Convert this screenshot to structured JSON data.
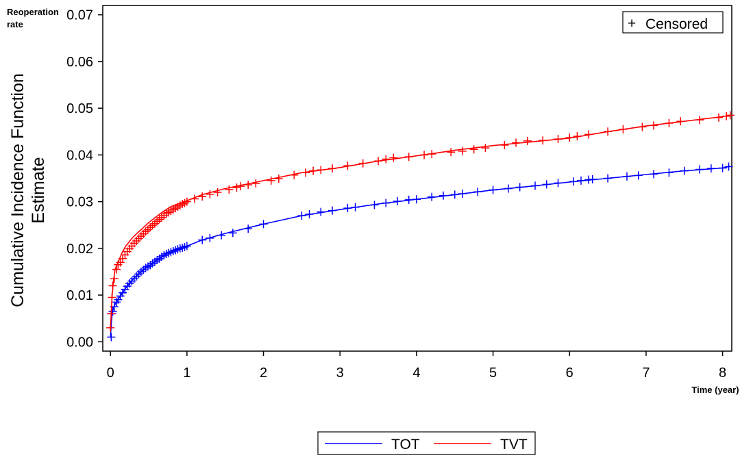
{
  "chart_data": {
    "type": "line",
    "title": "",
    "corner_label_line1": "Reoperation",
    "corner_label_line2": "rate",
    "ylabel_line1": "Cumulative Incidence Function",
    "ylabel_line2": "Estimate",
    "xlabel": "Time (year)",
    "xlim": [
      -0.1,
      8.12
    ],
    "ylim": [
      -0.002,
      0.072
    ],
    "x_ticks": [
      0,
      1,
      2,
      3,
      4,
      5,
      6,
      7,
      8
    ],
    "x_tick_labels": [
      "0",
      "1",
      "2",
      "3",
      "4",
      "5",
      "6",
      "7",
      "8"
    ],
    "y_ticks": [
      0.0,
      0.01,
      0.02,
      0.03,
      0.04,
      0.05,
      0.06,
      0.07
    ],
    "y_tick_labels": [
      "0.00",
      "0.01",
      "0.02",
      "0.03",
      "0.04",
      "0.05",
      "0.06",
      "0.07"
    ],
    "grid": false,
    "censor_legend": {
      "symbol": "+",
      "label": "Censored",
      "placement": "top-right"
    },
    "legend_placement": "bottom",
    "series": [
      {
        "name": "TOT",
        "color": "#0000ff",
        "x": [
          0,
          0.02,
          0.04,
          0.06,
          0.1,
          0.15,
          0.2,
          0.3,
          0.4,
          0.5,
          0.6,
          0.7,
          0.8,
          0.9,
          1.0,
          1.2,
          1.5,
          2.0,
          2.5,
          3.0,
          3.5,
          4.0,
          4.5,
          5.0,
          5.5,
          6.0,
          6.5,
          7.0,
          7.5,
          8.0,
          8.1
        ],
        "y": [
          0.001,
          0.006,
          0.0072,
          0.008,
          0.009,
          0.0103,
          0.0115,
          0.0135,
          0.015,
          0.0162,
          0.0174,
          0.0185,
          0.0193,
          0.0199,
          0.0205,
          0.0218,
          0.0232,
          0.0252,
          0.027,
          0.0283,
          0.0295,
          0.0305,
          0.0315,
          0.0325,
          0.0333,
          0.0342,
          0.035,
          0.0358,
          0.0366,
          0.0372,
          0.0376
        ],
        "censored_x": [
          0.01,
          0.02,
          0.03,
          0.05,
          0.08,
          0.1,
          0.13,
          0.16,
          0.19,
          0.22,
          0.25,
          0.28,
          0.31,
          0.34,
          0.37,
          0.4,
          0.43,
          0.46,
          0.49,
          0.52,
          0.55,
          0.58,
          0.61,
          0.64,
          0.67,
          0.7,
          0.73,
          0.76,
          0.79,
          0.82,
          0.85,
          0.88,
          0.91,
          0.94,
          0.97,
          1.0,
          1.2,
          1.3,
          1.45,
          1.6,
          1.8,
          2.0,
          2.5,
          2.6,
          2.75,
          2.9,
          3.1,
          3.2,
          3.45,
          3.6,
          3.75,
          3.9,
          4.0,
          4.2,
          4.35,
          4.5,
          4.6,
          4.8,
          5.0,
          5.2,
          5.35,
          5.55,
          5.7,
          5.85,
          6.05,
          6.15,
          6.25,
          6.3,
          6.5,
          6.75,
          6.9,
          7.1,
          7.3,
          7.5,
          7.7,
          7.85,
          8.0,
          8.08
        ],
        "censored_y": [
          0.001,
          0.006,
          0.0065,
          0.0075,
          0.0085,
          0.009,
          0.0098,
          0.0105,
          0.0112,
          0.0119,
          0.0125,
          0.013,
          0.0135,
          0.014,
          0.0145,
          0.015,
          0.0154,
          0.0158,
          0.0161,
          0.0164,
          0.0168,
          0.0171,
          0.0175,
          0.0178,
          0.0182,
          0.0185,
          0.0188,
          0.019,
          0.0192,
          0.0194,
          0.0196,
          0.0198,
          0.02,
          0.0201,
          0.0203,
          0.0205,
          0.0218,
          0.0222,
          0.0228,
          0.0233,
          0.0242,
          0.0252,
          0.027,
          0.0273,
          0.0278,
          0.0281,
          0.0286,
          0.0288,
          0.0293,
          0.0297,
          0.0301,
          0.0304,
          0.0305,
          0.031,
          0.0313,
          0.0315,
          0.0317,
          0.0321,
          0.0325,
          0.0328,
          0.0331,
          0.0334,
          0.0337,
          0.034,
          0.0343,
          0.0345,
          0.0347,
          0.0348,
          0.035,
          0.0354,
          0.0356,
          0.0359,
          0.0362,
          0.0366,
          0.0369,
          0.0371,
          0.0372,
          0.0375
        ]
      },
      {
        "name": "TVT",
        "color": "#ff0000",
        "x": [
          0,
          0.01,
          0.02,
          0.04,
          0.06,
          0.1,
          0.15,
          0.2,
          0.3,
          0.4,
          0.5,
          0.6,
          0.7,
          0.8,
          0.9,
          1.0,
          1.2,
          1.5,
          2.0,
          2.5,
          3.0,
          3.5,
          4.0,
          4.5,
          5.0,
          5.5,
          6.0,
          6.5,
          7.0,
          7.5,
          8.0,
          8.1
        ],
        "y": [
          0.003,
          0.006,
          0.0095,
          0.013,
          0.0155,
          0.017,
          0.019,
          0.0205,
          0.0225,
          0.024,
          0.0255,
          0.0268,
          0.028,
          0.029,
          0.0296,
          0.0302,
          0.0315,
          0.0328,
          0.0345,
          0.0362,
          0.0373,
          0.0387,
          0.0398,
          0.041,
          0.042,
          0.0428,
          0.0436,
          0.045,
          0.0462,
          0.0472,
          0.0482,
          0.0485
        ],
        "censored_x": [
          0.0,
          0.01,
          0.02,
          0.03,
          0.05,
          0.08,
          0.1,
          0.13,
          0.16,
          0.19,
          0.22,
          0.25,
          0.28,
          0.31,
          0.34,
          0.37,
          0.4,
          0.43,
          0.46,
          0.49,
          0.52,
          0.55,
          0.58,
          0.61,
          0.64,
          0.67,
          0.7,
          0.73,
          0.76,
          0.79,
          0.82,
          0.85,
          0.88,
          0.91,
          0.94,
          0.97,
          1.0,
          1.1,
          1.2,
          1.3,
          1.4,
          1.55,
          1.65,
          1.7,
          1.8,
          1.9,
          2.1,
          2.2,
          2.4,
          2.55,
          2.65,
          2.75,
          2.9,
          3.1,
          3.3,
          3.5,
          3.6,
          3.7,
          3.9,
          4.1,
          4.2,
          4.45,
          4.6,
          4.75,
          4.9,
          5.15,
          5.3,
          5.45,
          5.65,
          5.85,
          6.0,
          6.1,
          6.25,
          6.5,
          6.7,
          6.95,
          7.1,
          7.3,
          7.45,
          7.7,
          7.95,
          8.05,
          8.1
        ],
        "censored_y": [
          0.003,
          0.006,
          0.0095,
          0.012,
          0.0135,
          0.0155,
          0.0165,
          0.017,
          0.0178,
          0.0186,
          0.0193,
          0.0199,
          0.0205,
          0.0211,
          0.0216,
          0.0221,
          0.0226,
          0.0231,
          0.0236,
          0.024,
          0.0245,
          0.0249,
          0.0253,
          0.0258,
          0.0262,
          0.0266,
          0.027,
          0.0274,
          0.0277,
          0.028,
          0.0283,
          0.0286,
          0.0289,
          0.0292,
          0.0295,
          0.0297,
          0.03,
          0.0306,
          0.0311,
          0.0316,
          0.032,
          0.0326,
          0.033,
          0.0333,
          0.0336,
          0.0339,
          0.0345,
          0.0349,
          0.0357,
          0.0362,
          0.0366,
          0.0368,
          0.0371,
          0.0377,
          0.0382,
          0.0387,
          0.0391,
          0.0394,
          0.0396,
          0.04,
          0.0402,
          0.0406,
          0.0408,
          0.0412,
          0.0415,
          0.0421,
          0.0426,
          0.043,
          0.0431,
          0.0434,
          0.0437,
          0.044,
          0.0444,
          0.045,
          0.0455,
          0.046,
          0.0463,
          0.0468,
          0.0472,
          0.0475,
          0.048,
          0.0483,
          0.0485
        ]
      }
    ]
  }
}
